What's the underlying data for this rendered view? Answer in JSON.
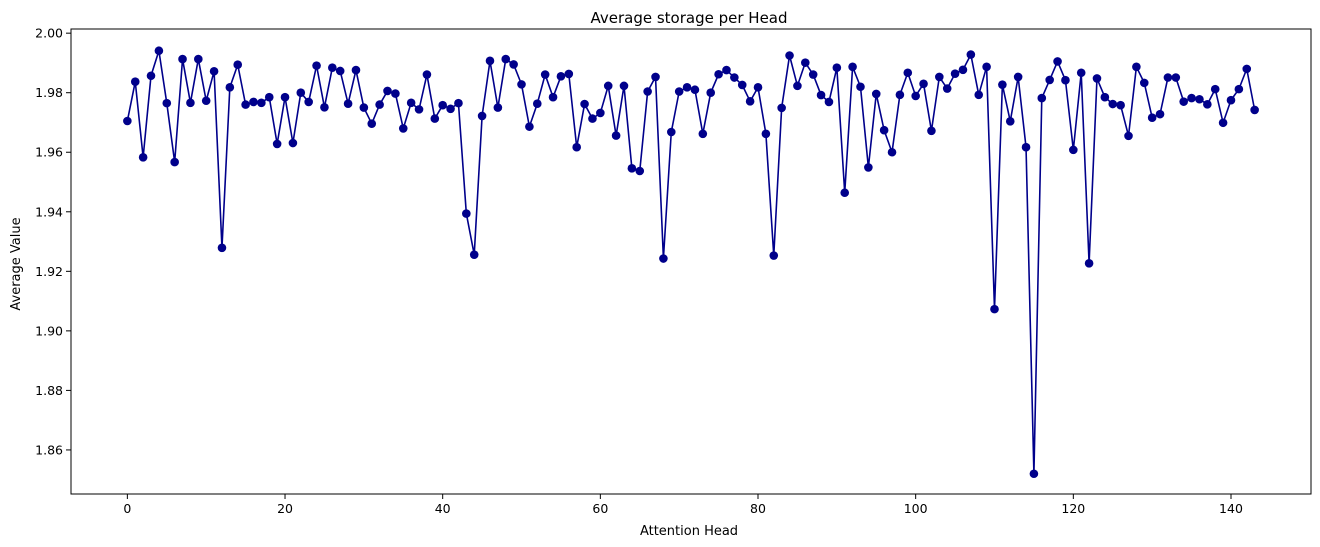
{
  "chart_data": {
    "type": "line",
    "title": "Average storage per Head",
    "xlabel": "Attention Head",
    "ylabel": "Average Value",
    "xlim": [
      -7.15,
      150.15
    ],
    "ylim": [
      1.8452,
      2.0014
    ],
    "xticks": [
      0,
      20,
      40,
      60,
      80,
      100,
      120,
      140
    ],
    "xtick_labels": [
      "0",
      "20",
      "40",
      "60",
      "80",
      "100",
      "120",
      "140"
    ],
    "yticks": [
      1.86,
      1.88,
      1.9,
      1.92,
      1.94,
      1.96,
      1.98,
      2.0
    ],
    "ytick_labels": [
      "1.86",
      "1.88",
      "1.90",
      "1.92",
      "1.94",
      "1.96",
      "1.98",
      "2.00"
    ],
    "grid": false,
    "color": "#00008b",
    "series": [
      {
        "marker": "circle",
        "x": [
          0,
          1,
          2,
          3,
          4,
          5,
          6,
          7,
          8,
          9,
          10,
          11,
          12,
          13,
          14,
          15,
          16,
          17,
          18,
          19,
          20,
          21,
          22,
          23,
          24,
          25,
          26,
          27,
          28,
          29,
          30,
          31,
          32,
          33,
          34,
          35,
          36,
          37,
          38,
          39,
          40,
          41,
          42,
          43,
          44,
          45,
          46,
          47,
          48,
          49,
          50,
          51,
          52,
          53,
          54,
          55,
          56,
          57,
          58,
          59,
          60,
          61,
          62,
          63,
          64,
          65,
          66,
          67,
          68,
          69,
          70,
          71,
          72,
          73,
          74,
          75,
          76,
          77,
          78,
          79,
          80,
          81,
          82,
          83,
          84,
          85,
          86,
          87,
          88,
          89,
          90,
          91,
          92,
          93,
          94,
          95,
          96,
          97,
          98,
          99,
          100,
          101,
          102,
          103,
          104,
          105,
          106,
          107,
          108,
          109,
          110,
          111,
          112,
          113,
          114,
          115,
          116,
          117,
          118,
          119,
          120,
          121,
          122,
          123,
          124,
          125,
          126,
          127,
          128,
          129,
          130,
          131,
          132,
          133,
          134,
          135,
          136,
          137,
          138,
          139,
          140,
          141,
          142,
          143
        ],
        "values": [
          1.9705,
          1.9837,
          1.9583,
          1.9857,
          1.9941,
          1.9765,
          1.9567,
          1.9913,
          1.9766,
          1.9913,
          1.9773,
          1.9872,
          1.9279,
          1.9818,
          1.9894,
          1.976,
          1.9769,
          1.9766,
          1.9785,
          1.9628,
          1.9785,
          1.9631,
          1.98,
          1.9769,
          1.9891,
          1.9751,
          1.9884,
          1.9873,
          1.9763,
          1.9876,
          1.975,
          1.9696,
          1.976,
          1.9806,
          1.9797,
          1.968,
          1.9766,
          1.9744,
          1.9861,
          1.9713,
          1.9758,
          1.9746,
          1.9765,
          1.9394,
          1.9256,
          1.9722,
          1.9907,
          1.975,
          1.9913,
          1.9895,
          1.9828,
          1.9686,
          1.9763,
          1.9861,
          1.9785,
          1.9855,
          1.9863,
          1.9617,
          1.9762,
          1.9713,
          1.9732,
          1.9823,
          1.9656,
          1.9823,
          1.9546,
          1.9537,
          1.9804,
          1.9853,
          1.9243,
          1.9668,
          1.9804,
          1.9818,
          1.981,
          1.9662,
          1.98,
          1.9862,
          1.9876,
          1.9851,
          1.9826,
          1.9771,
          1.9818,
          1.9662,
          1.9253,
          1.9749,
          1.9925,
          1.9823,
          1.9901,
          1.9861,
          1.9792,
          1.9769,
          1.9884,
          1.9464,
          1.9887,
          1.982,
          1.9549,
          1.9796,
          1.9674,
          1.96,
          1.9793,
          1.9867,
          1.9789,
          1.983,
          1.9672,
          1.9853,
          1.9814,
          1.9864,
          1.9877,
          1.9928,
          1.9793,
          1.9887,
          1.9073,
          1.9827,
          1.9704,
          1.9853,
          1.9617,
          1.852,
          1.9782,
          1.9843,
          1.9905,
          1.9842,
          1.9608,
          1.9867,
          1.9227,
          1.9848,
          1.9785,
          1.9762,
          1.9758,
          1.9655,
          1.9887,
          1.9833,
          1.9716,
          1.9728,
          1.9851,
          1.9851,
          1.977,
          1.9782,
          1.9778,
          1.9761,
          1.9812,
          1.9699,
          1.9775,
          1.9812,
          1.988,
          1.9742
        ]
      }
    ]
  }
}
